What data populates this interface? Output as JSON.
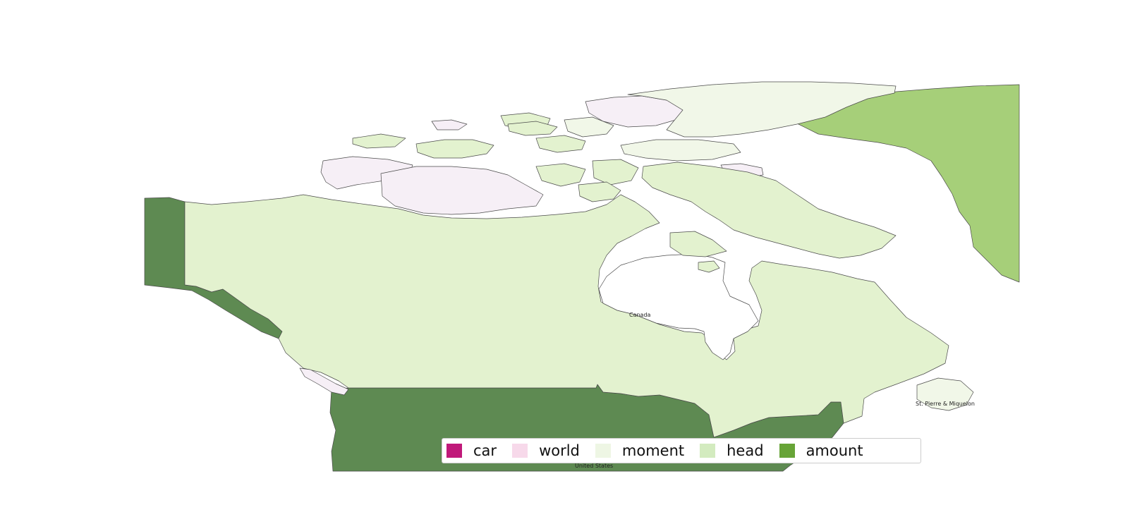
{
  "map": {
    "labels": {
      "canada": "Canada",
      "united_states": "United States",
      "st_pierre": "St. Pierre & Miquelon"
    },
    "colors": {
      "car": "#c0197a",
      "world": "#f7d9ea",
      "moment": "#eef6e4",
      "head": "#d3ebbf",
      "amount": "#67a437",
      "canada_fill": "#e3f2cf",
      "islands_world_fill": "#f6eff6",
      "islands_moment_fill": "#f1f7e8",
      "greenland_fill": "#a6cf79",
      "usa_fill": "#5e8a52"
    }
  },
  "legend": {
    "items": [
      {
        "label": "car",
        "color": "#c0197a"
      },
      {
        "label": "world",
        "color": "#f7d9ea"
      },
      {
        "label": "moment",
        "color": "#eef6e4"
      },
      {
        "label": "head",
        "color": "#d3ebbf"
      },
      {
        "label": "amount",
        "color": "#67a437"
      }
    ]
  }
}
